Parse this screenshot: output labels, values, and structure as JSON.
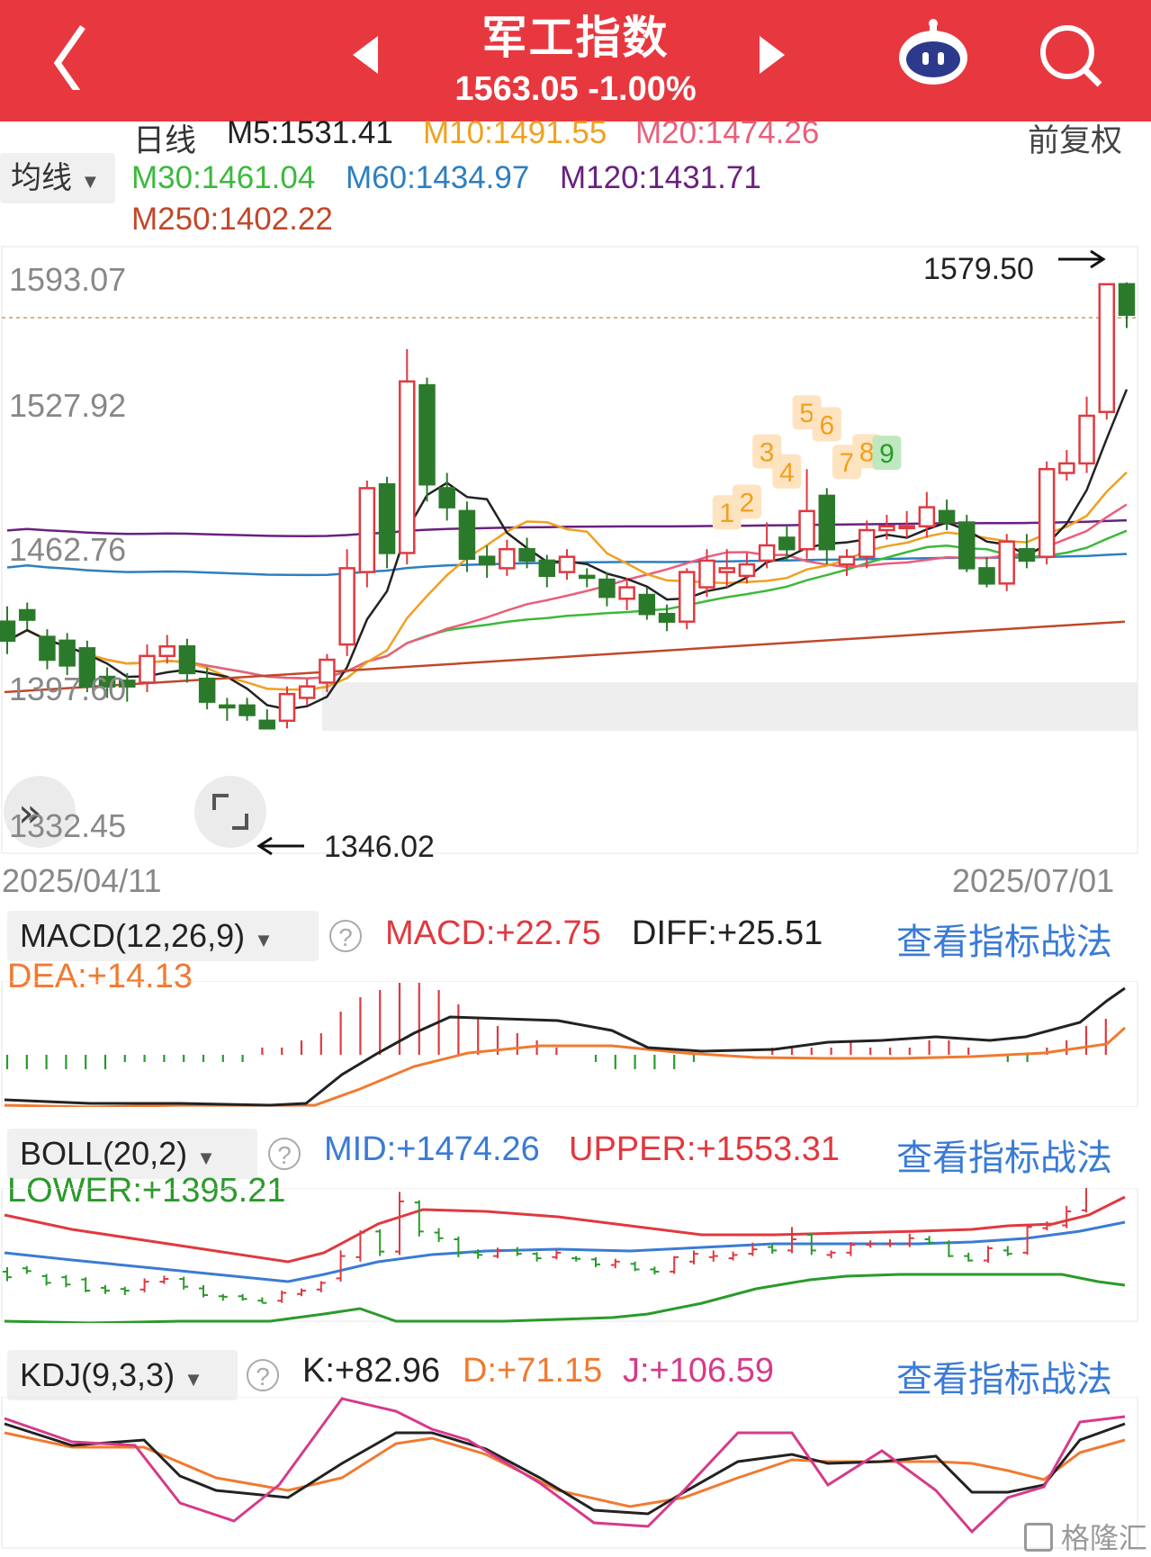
{
  "header": {
    "title": "军工指数",
    "price": "1563.05",
    "change": "-1.00%",
    "colors": {
      "bg": "#e8383f"
    }
  },
  "ma_panel": {
    "period": "日线",
    "adjust": "前复权",
    "selector": "均线",
    "ma5": "M5:1531.41",
    "ma10": "M10:1491.55",
    "ma20": "M20:1474.26",
    "ma30": "M30:1461.04",
    "ma60": "M60:1434.97",
    "ma120": "M120:1431.71",
    "ma250": "M250:1402.22"
  },
  "price_axis": [
    "1593.07",
    "1527.92",
    "1462.76",
    "1397.60",
    "1332.45"
  ],
  "annotations": {
    "high": "1579.50",
    "low": "1346.02"
  },
  "dates": {
    "start": "2025/04/11",
    "end": "2025/07/01"
  },
  "macd": {
    "selector": "MACD(12,26,9)",
    "macd": "MACD:+22.75",
    "diff": "DIFF:+25.51",
    "dea": "DEA:+14.13",
    "link": "查看指标战法"
  },
  "boll": {
    "selector": "BOLL(20,2)",
    "mid": "MID:+1474.26",
    "upper": "UPPER:+1553.31",
    "lower": "LOWER:+1395.21",
    "link": "查看指标战法"
  },
  "kdj": {
    "selector": "KDJ(9,3,3)",
    "k": "K:+82.96",
    "d": "D:+71.15",
    "j": "J:+106.59",
    "link": "查看指标战法"
  },
  "signals": [
    "1",
    "2",
    "3",
    "4",
    "5",
    "6",
    "7",
    "8",
    "9"
  ],
  "watermark": "格隆汇",
  "chart_data": {
    "type": "candlestick",
    "ylim": [
      1332.45,
      1593.07
    ],
    "candles": [
      [
        1402,
        1392,
        1410,
        1385
      ],
      [
        1408,
        1403,
        1412,
        1398
      ],
      [
        1394,
        1382,
        1398,
        1377
      ],
      [
        1392,
        1379,
        1396,
        1374
      ],
      [
        1388,
        1368,
        1392,
        1365
      ],
      [
        1373,
        1368,
        1378,
        1362
      ],
      [
        1371,
        1368,
        1375,
        1360
      ],
      [
        1370,
        1384,
        1390,
        1365
      ],
      [
        1384,
        1389,
        1395,
        1380
      ],
      [
        1389,
        1375,
        1393,
        1370
      ],
      [
        1372,
        1360,
        1378,
        1356
      ],
      [
        1358,
        1357,
        1362,
        1350
      ],
      [
        1358,
        1353,
        1362,
        1350
      ],
      [
        1350,
        1346,
        1356,
        1346
      ],
      [
        1350,
        1364,
        1368,
        1346
      ],
      [
        1362,
        1368,
        1372,
        1358
      ],
      [
        1370,
        1382,
        1385,
        1365
      ],
      [
        1390,
        1430,
        1440,
        1384
      ],
      [
        1428,
        1472,
        1476,
        1420
      ],
      [
        1474,
        1438,
        1478,
        1430
      ],
      [
        1438,
        1528,
        1545,
        1432
      ],
      [
        1526,
        1474,
        1530,
        1465
      ],
      [
        1472,
        1462,
        1480,
        1455
      ],
      [
        1460,
        1435,
        1465,
        1428
      ],
      [
        1436,
        1432,
        1442,
        1425
      ],
      [
        1430,
        1440,
        1445,
        1426
      ],
      [
        1440,
        1434,
        1446,
        1430
      ],
      [
        1434,
        1426,
        1437,
        1420
      ],
      [
        1428,
        1436,
        1440,
        1424
      ],
      [
        1426,
        1425,
        1430,
        1420
      ],
      [
        1424,
        1415,
        1428,
        1410
      ],
      [
        1414,
        1420,
        1425,
        1408
      ],
      [
        1416,
        1406,
        1420,
        1403
      ],
      [
        1406,
        1402,
        1411,
        1397
      ],
      [
        1402,
        1428,
        1430,
        1398
      ],
      [
        1420,
        1434,
        1440,
        1415
      ],
      [
        1428,
        1430,
        1440,
        1420
      ],
      [
        1426,
        1432,
        1438,
        1422
      ],
      [
        1434,
        1442,
        1454,
        1430
      ],
      [
        1446,
        1440,
        1452,
        1434
      ],
      [
        1440,
        1460,
        1482,
        1435
      ],
      [
        1468,
        1440,
        1472,
        1432
      ],
      [
        1432,
        1436,
        1440,
        1426
      ],
      [
        1436,
        1450,
        1455,
        1430
      ],
      [
        1450,
        1452,
        1458,
        1445
      ],
      [
        1452,
        1452,
        1460,
        1446
      ],
      [
        1452,
        1462,
        1470,
        1446
      ],
      [
        1460,
        1454,
        1466,
        1450
      ],
      [
        1454,
        1430,
        1458,
        1428
      ],
      [
        1430,
        1422,
        1436,
        1420
      ],
      [
        1422,
        1444,
        1448,
        1418
      ],
      [
        1440,
        1434,
        1448,
        1430
      ],
      [
        1436,
        1482,
        1486,
        1432
      ],
      [
        1480,
        1485,
        1492,
        1476
      ],
      [
        1485,
        1510,
        1520,
        1480
      ],
      [
        1512,
        1579,
        1579,
        1508
      ],
      [
        1579,
        1563,
        1580,
        1556
      ]
    ]
  }
}
